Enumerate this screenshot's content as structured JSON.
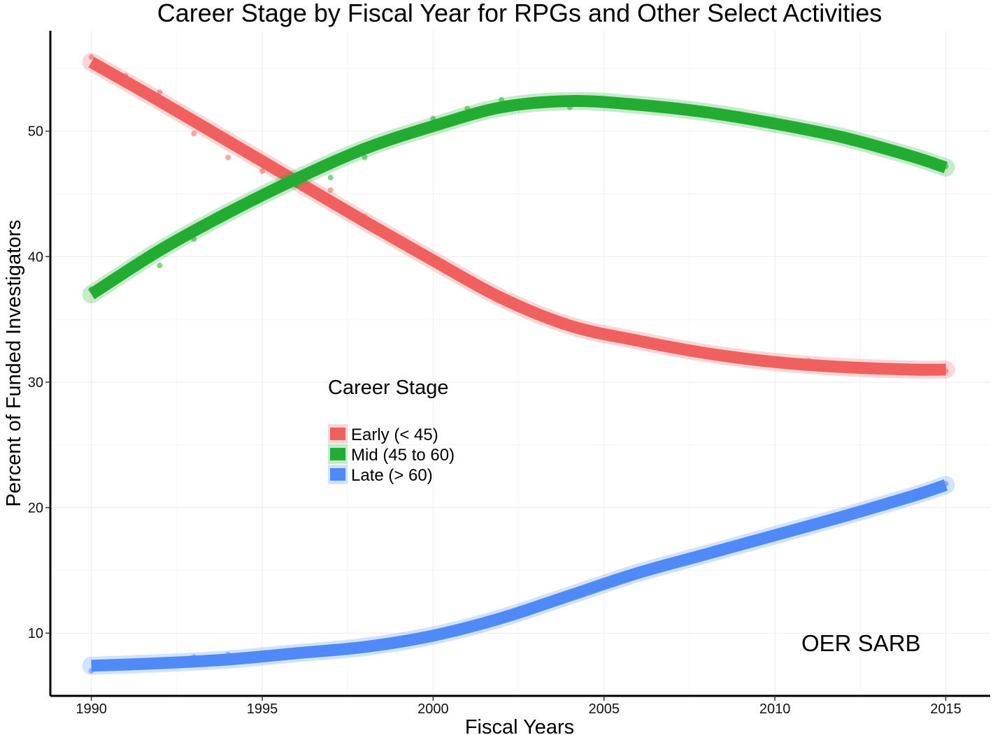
{
  "chart_data": {
    "type": "line",
    "title": "Career Stage by Fiscal Year for RPGs and Other Select Activities",
    "xlabel": "Fiscal Years",
    "ylabel": "Percent of Funded Investigators",
    "xlim": [
      1988.8,
      2016.3
    ],
    "ylim": [
      5,
      58
    ],
    "x_ticks": [
      1990,
      1995,
      2000,
      2005,
      2010,
      2015
    ],
    "y_ticks": [
      10,
      20,
      30,
      40,
      50
    ],
    "grid": true,
    "legend": {
      "title": "Career Stage",
      "position": "center-left"
    },
    "annotation": "OER SARB",
    "series": [
      {
        "name": "Early (< 45)",
        "color": "#f0605e",
        "smooth_x": [
          1990,
          1992,
          1994,
          1996,
          1998,
          2000,
          2002,
          2004,
          2006,
          2008,
          2010,
          2012,
          2014,
          2015
        ],
        "smooth_y": [
          55.5,
          52.4,
          49.2,
          46.0,
          42.8,
          39.7,
          36.7,
          34.5,
          33.3,
          32.3,
          31.6,
          31.2,
          31.0,
          31.0
        ],
        "points_x": [
          1990,
          1991,
          1992,
          1993,
          1994,
          1995,
          1996,
          1997,
          1998,
          1999,
          2000,
          2001,
          2002,
          2003,
          2004,
          2005,
          2006,
          2007,
          2008,
          2009,
          2010,
          2011,
          2012,
          2013,
          2014,
          2015
        ],
        "points_y": [
          55.9,
          54.4,
          53.1,
          49.8,
          47.9,
          46.8,
          46.1,
          45.3,
          43.2,
          41.4,
          39.5,
          38.1,
          36.6,
          35.3,
          34.4,
          33.8,
          33.2,
          32.8,
          32.2,
          31.9,
          31.7,
          31.7,
          31.2,
          31.0,
          31.0,
          30.9
        ]
      },
      {
        "name": "Mid (45 to 60)",
        "color": "#22ad32",
        "smooth_x": [
          1990,
          1992,
          1994,
          1996,
          1998,
          2000,
          2002,
          2004,
          2006,
          2008,
          2010,
          2012,
          2014,
          2015
        ],
        "smooth_y": [
          37.0,
          40.5,
          43.5,
          46.2,
          48.6,
          50.4,
          51.9,
          52.4,
          52.1,
          51.5,
          50.6,
          49.5,
          48.0,
          47.1
        ],
        "points_x": [
          1990,
          1991,
          1992,
          1993,
          1994,
          1995,
          1996,
          1997,
          1998,
          1999,
          2000,
          2001,
          2002,
          2003,
          2004,
          2005,
          2006,
          2007,
          2008,
          2009,
          2010,
          2011,
          2012,
          2013,
          2014,
          2015
        ],
        "points_y": [
          37.4,
          38.9,
          39.3,
          41.4,
          43.6,
          45.1,
          45.7,
          46.3,
          47.9,
          49.3,
          51.0,
          51.8,
          52.5,
          52.3,
          51.9,
          52.3,
          52.1,
          51.7,
          51.3,
          51.0,
          50.5,
          49.9,
          49.3,
          48.6,
          47.8,
          47.2
        ]
      },
      {
        "name": "Late (> 60)",
        "color": "#4f8af8",
        "smooth_x": [
          1990,
          1992,
          1994,
          1996,
          1998,
          2000,
          2002,
          2004,
          2006,
          2008,
          2010,
          2012,
          2014,
          2015
        ],
        "smooth_y": [
          7.4,
          7.6,
          7.9,
          8.4,
          8.9,
          9.8,
          11.2,
          13.0,
          14.8,
          16.3,
          17.8,
          19.3,
          20.9,
          21.8
        ],
        "points_x": [
          1990,
          1991,
          1992,
          1993,
          1994,
          1995,
          1996,
          1997,
          1998,
          1999,
          2000,
          2001,
          2002,
          2003,
          2004,
          2005,
          2006,
          2007,
          2008,
          2009,
          2010,
          2011,
          2012,
          2013,
          2014,
          2015
        ],
        "points_y": [
          7.0,
          7.5,
          7.7,
          8.1,
          8.3,
          8.4,
          8.5,
          8.7,
          8.9,
          9.3,
          9.8,
          10.4,
          11.2,
          12.1,
          13.0,
          13.9,
          14.8,
          15.6,
          16.3,
          17.1,
          17.8,
          18.6,
          19.4,
          20.2,
          21.0,
          21.9
        ]
      }
    ]
  }
}
